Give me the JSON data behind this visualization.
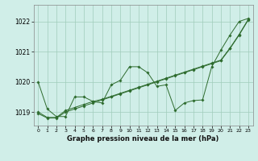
{
  "title": "Graphe pression niveau de la mer (hPa)",
  "bg_color": "#d0eee8",
  "grid_color": "#a0ccbb",
  "line_color": "#2d6b2d",
  "xlim": [
    -0.5,
    23.5
  ],
  "ylim": [
    1018.55,
    1022.55
  ],
  "yticks": [
    1019,
    1020,
    1021,
    1022
  ],
  "xticks": [
    0,
    1,
    2,
    3,
    4,
    5,
    6,
    7,
    8,
    9,
    10,
    11,
    12,
    13,
    14,
    15,
    16,
    17,
    18,
    19,
    20,
    21,
    22,
    23
  ],
  "line1": [
    1020.0,
    1019.1,
    1018.85,
    1018.85,
    1019.5,
    1019.5,
    1019.35,
    1019.3,
    1019.9,
    1020.05,
    1020.5,
    1020.5,
    1020.3,
    1019.85,
    1019.9,
    1019.05,
    1019.3,
    1019.38,
    1019.4,
    1020.5,
    1021.05,
    1021.55,
    1022.0,
    1022.1
  ],
  "line2": [
    1018.95,
    1018.8,
    1018.8,
    1019.0,
    1019.1,
    1019.2,
    1019.3,
    1019.4,
    1019.5,
    1019.6,
    1019.7,
    1019.8,
    1019.9,
    1020.0,
    1020.1,
    1020.2,
    1020.3,
    1020.4,
    1020.5,
    1020.6,
    1020.7,
    1021.1,
    1021.55,
    1022.05
  ],
  "line3": [
    1019.0,
    1018.82,
    1018.82,
    1019.05,
    1019.15,
    1019.25,
    1019.35,
    1019.42,
    1019.52,
    1019.62,
    1019.72,
    1019.82,
    1019.92,
    1020.02,
    1020.12,
    1020.22,
    1020.32,
    1020.42,
    1020.52,
    1020.62,
    1020.72,
    1021.12,
    1021.57,
    1022.07
  ],
  "ylabel_fontsize": 5.5,
  "xlabel_fontsize": 6.0,
  "tick_fontsize": 4.5
}
